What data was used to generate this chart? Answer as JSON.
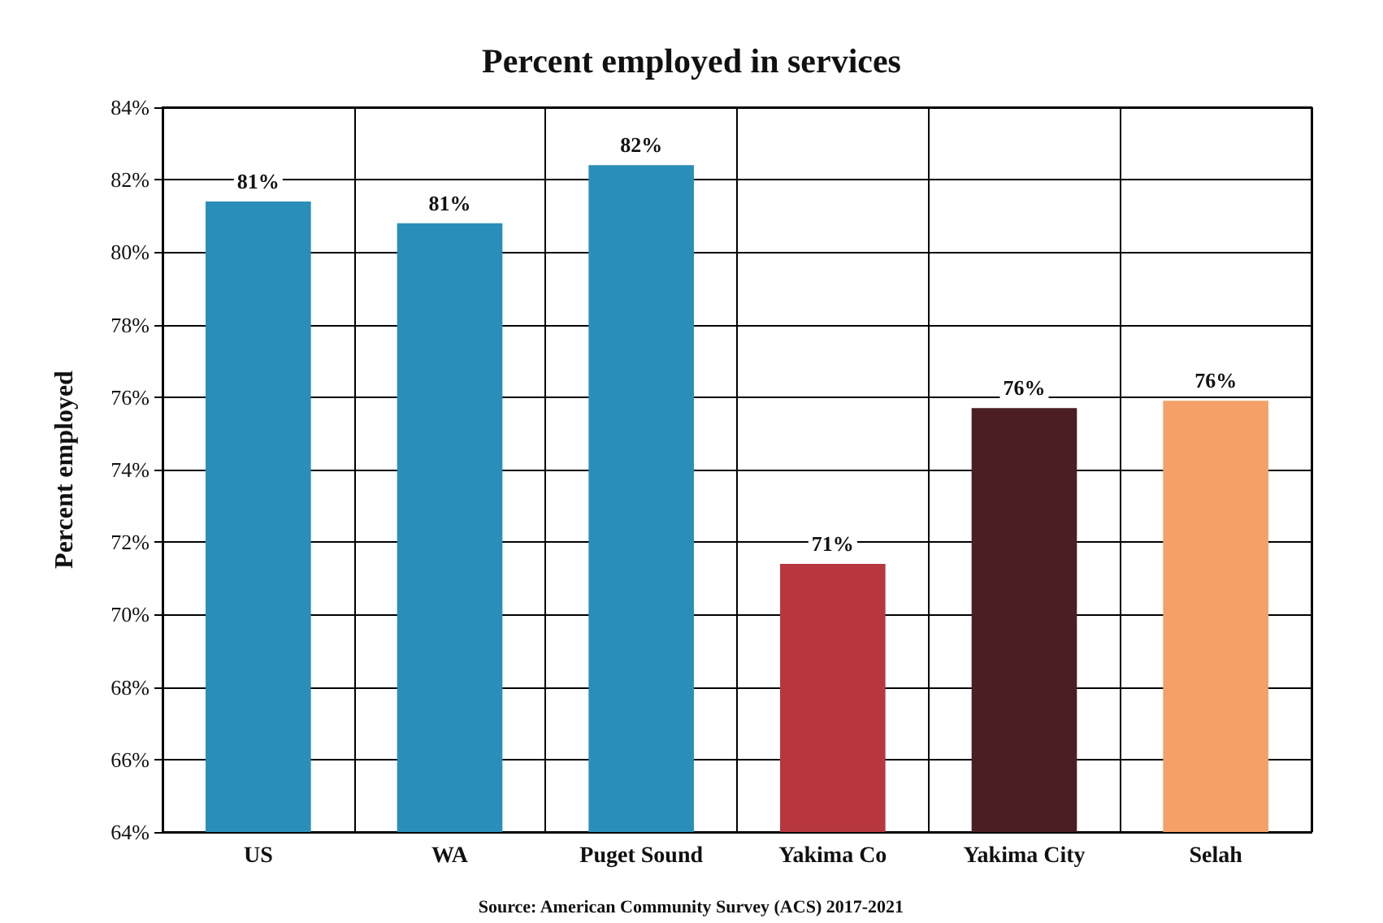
{
  "chart_data": {
    "type": "bar",
    "title": "Percent employed in services",
    "ylabel": "Percent employed",
    "categories": [
      "US",
      "WA",
      "Puget Sound",
      "Yakima Co",
      "Yakima City",
      "Selah"
    ],
    "values": [
      81.4,
      80.8,
      82.4,
      71.4,
      75.7,
      75.9
    ],
    "colors": [
      "#2a8fb8",
      "#2a8fb8",
      "#2a8fb8",
      "#b8373f",
      "#4a1e22",
      "#f4a068"
    ],
    "value_labels": [
      "81%",
      "81%",
      "82%",
      "71%",
      "76%",
      "76%"
    ],
    "ylim": [
      64,
      84
    ],
    "yticks": [
      {
        "value": 64,
        "label": "64%"
      },
      {
        "value": 66,
        "label": "66%"
      },
      {
        "value": 68,
        "label": "68%"
      },
      {
        "value": 70,
        "label": "70%"
      },
      {
        "value": 72,
        "label": "72%"
      },
      {
        "value": 74,
        "label": "74%"
      },
      {
        "value": 76,
        "label": "76%"
      },
      {
        "value": 78,
        "label": "78%"
      },
      {
        "value": 80,
        "label": "80%"
      },
      {
        "value": 82,
        "label": "82%"
      },
      {
        "value": 84,
        "label": "84%"
      }
    ],
    "grid": true,
    "annotations": [
      "Source: American Community Survey (ACS) 2017-2021"
    ]
  }
}
